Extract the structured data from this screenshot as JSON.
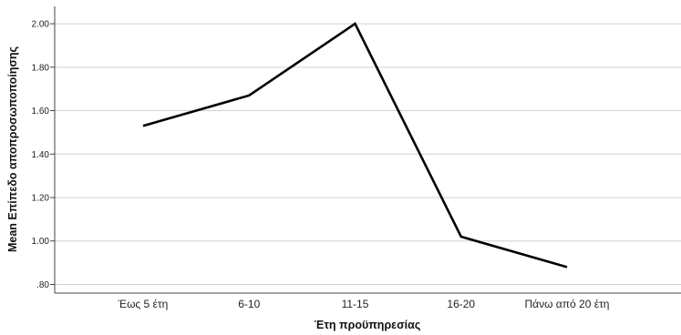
{
  "chart_data": {
    "type": "line",
    "title": "",
    "xlabel": "Έτη προϋπηρεσίας",
    "ylabel": "Mean Επίπεδο αποπροσωποποίησης",
    "categories": [
      "Έως 5 έτη",
      "6-10",
      "11-15",
      "16-20",
      "Πάνω από 20 έτη"
    ],
    "series": [
      {
        "values": [
          1.53,
          1.67,
          2.0,
          1.02,
          0.88
        ]
      }
    ],
    "ylim": [
      0.76,
      2.08
    ],
    "yticks": [
      "2.00",
      "1.80",
      "1.60",
      "1.40",
      "1.20",
      "1.00",
      ".80"
    ],
    "grid": true,
    "line_color": "#000000"
  }
}
